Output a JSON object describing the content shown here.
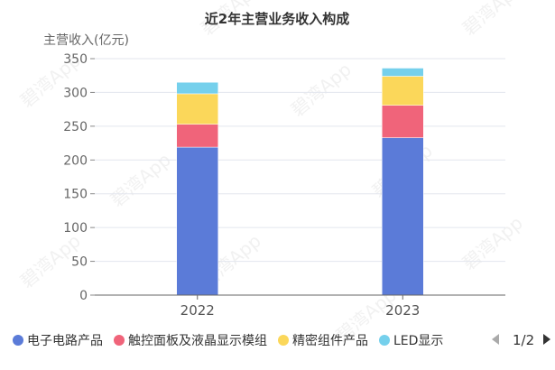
{
  "chart_data": {
    "type": "bar",
    "stacked": true,
    "title": "近2年主营业务收入构成",
    "ylabel": "主营收入(亿元)",
    "xlabel": "",
    "categories": [
      "2022",
      "2023"
    ],
    "ylim": [
      0,
      350
    ],
    "yticks": [
      0,
      50,
      100,
      150,
      200,
      250,
      300,
      350
    ],
    "grid": true,
    "legend_position": "bottom",
    "series": [
      {
        "name": "电子电路产品",
        "color": "#5b7bd8",
        "values": [
          219,
          233
        ]
      },
      {
        "name": "触控面板及液晶显示模组",
        "color": "#f0647a",
        "values": [
          34,
          48
        ]
      },
      {
        "name": "精密组件产品",
        "color": "#fbd75a",
        "values": [
          45,
          43
        ]
      },
      {
        "name": "LED显示",
        "color": "#75d0ec",
        "values": [
          17,
          12
        ]
      }
    ]
  },
  "legend": {
    "page_label": "1/2",
    "prev_icon": "triangle-left-icon",
    "next_icon": "triangle-right-icon"
  },
  "watermark": "碧湾App"
}
